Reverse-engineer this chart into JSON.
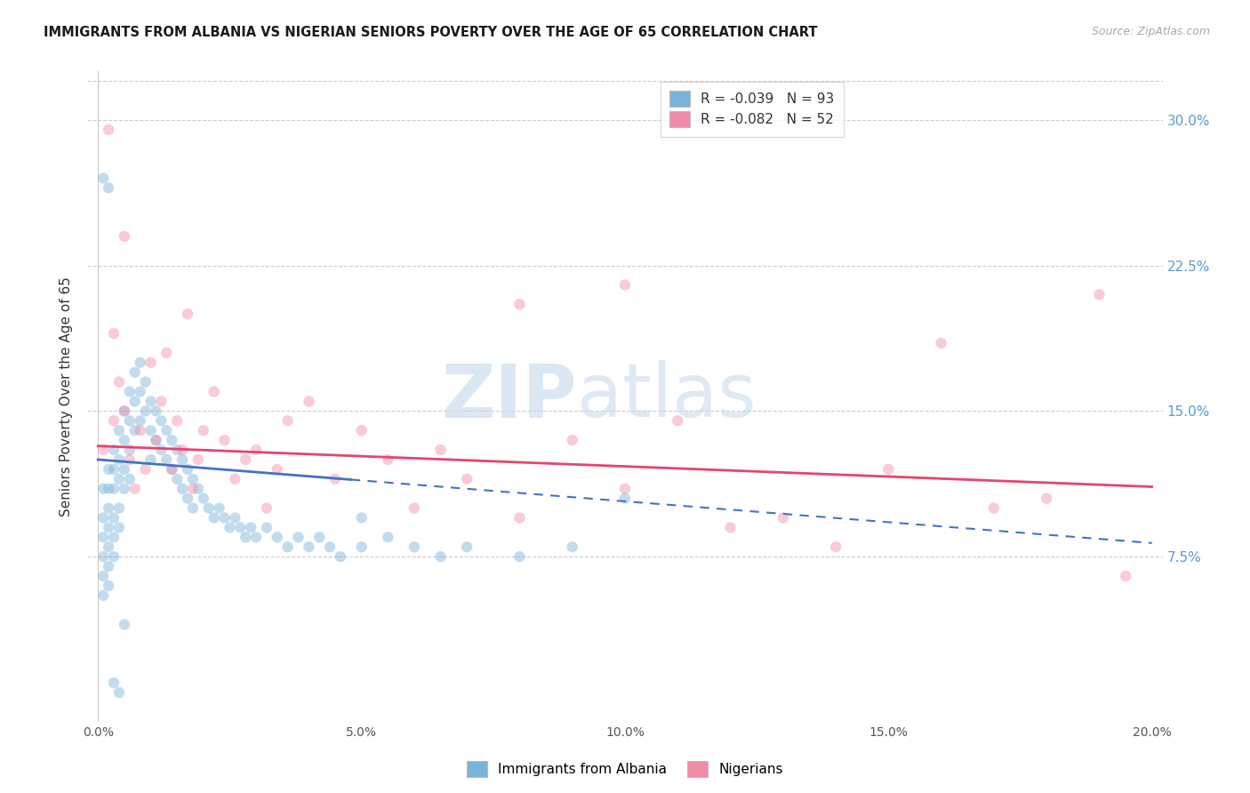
{
  "title": "IMMIGRANTS FROM ALBANIA VS NIGERIAN SENIORS POVERTY OVER THE AGE OF 65 CORRELATION CHART",
  "source": "Source: ZipAtlas.com",
  "ylabel": "Seniors Poverty Over the Age of 65",
  "xlim": [
    -0.002,
    0.202
  ],
  "ylim": [
    -0.01,
    0.325
  ],
  "x_tick_vals": [
    0.0,
    0.05,
    0.1,
    0.15,
    0.2
  ],
  "x_tick_labels": [
    "0.0%",
    "5.0%",
    "10.0%",
    "15.0%",
    "20.0%"
  ],
  "y_tick_vals": [
    0.075,
    0.15,
    0.225,
    0.3
  ],
  "y_tick_labels": [
    "7.5%",
    "15.0%",
    "22.5%",
    "30.0%"
  ],
  "legend_line1": "R = -0.039   N = 93",
  "legend_line2": "R = -0.082   N = 52",
  "albania_color": "#7ab3d9",
  "nigeria_color": "#f08ca8",
  "albania_line_color": "#4472c4",
  "nigeria_line_color": "#e8436e",
  "grid_color": "#cccccc",
  "bg_color": "#ffffff",
  "title_color": "#1a1a1a",
  "right_axis_color": "#5b9bd5",
  "marker_size": 80,
  "marker_alpha": 0.45,
  "albania_x": [
    0.001,
    0.001,
    0.001,
    0.001,
    0.001,
    0.001,
    0.002,
    0.002,
    0.002,
    0.002,
    0.002,
    0.002,
    0.002,
    0.003,
    0.003,
    0.003,
    0.003,
    0.003,
    0.003,
    0.004,
    0.004,
    0.004,
    0.004,
    0.004,
    0.005,
    0.005,
    0.005,
    0.005,
    0.006,
    0.006,
    0.006,
    0.006,
    0.007,
    0.007,
    0.007,
    0.008,
    0.008,
    0.008,
    0.009,
    0.009,
    0.01,
    0.01,
    0.01,
    0.011,
    0.011,
    0.012,
    0.012,
    0.013,
    0.013,
    0.014,
    0.014,
    0.015,
    0.015,
    0.016,
    0.016,
    0.017,
    0.017,
    0.018,
    0.018,
    0.019,
    0.02,
    0.021,
    0.022,
    0.023,
    0.024,
    0.025,
    0.026,
    0.027,
    0.028,
    0.029,
    0.03,
    0.032,
    0.034,
    0.036,
    0.038,
    0.04,
    0.042,
    0.044,
    0.046,
    0.05,
    0.055,
    0.06,
    0.065,
    0.07,
    0.08,
    0.09,
    0.001,
    0.002,
    0.003,
    0.004,
    0.005,
    0.05,
    0.1
  ],
  "albania_y": [
    0.11,
    0.095,
    0.085,
    0.075,
    0.065,
    0.055,
    0.12,
    0.11,
    0.1,
    0.09,
    0.08,
    0.07,
    0.06,
    0.13,
    0.12,
    0.11,
    0.095,
    0.085,
    0.075,
    0.14,
    0.125,
    0.115,
    0.1,
    0.09,
    0.15,
    0.135,
    0.12,
    0.11,
    0.16,
    0.145,
    0.13,
    0.115,
    0.17,
    0.155,
    0.14,
    0.175,
    0.16,
    0.145,
    0.165,
    0.15,
    0.155,
    0.14,
    0.125,
    0.15,
    0.135,
    0.145,
    0.13,
    0.14,
    0.125,
    0.135,
    0.12,
    0.13,
    0.115,
    0.125,
    0.11,
    0.12,
    0.105,
    0.115,
    0.1,
    0.11,
    0.105,
    0.1,
    0.095,
    0.1,
    0.095,
    0.09,
    0.095,
    0.09,
    0.085,
    0.09,
    0.085,
    0.09,
    0.085,
    0.08,
    0.085,
    0.08,
    0.085,
    0.08,
    0.075,
    0.08,
    0.085,
    0.08,
    0.075,
    0.08,
    0.075,
    0.08,
    0.27,
    0.265,
    0.01,
    0.005,
    0.04,
    0.095,
    0.105
  ],
  "nigeria_x": [
    0.001,
    0.002,
    0.003,
    0.004,
    0.005,
    0.006,
    0.007,
    0.008,
    0.009,
    0.01,
    0.011,
    0.012,
    0.013,
    0.014,
    0.015,
    0.016,
    0.017,
    0.018,
    0.019,
    0.02,
    0.022,
    0.024,
    0.026,
    0.028,
    0.03,
    0.032,
    0.034,
    0.036,
    0.04,
    0.045,
    0.05,
    0.055,
    0.06,
    0.065,
    0.07,
    0.08,
    0.09,
    0.1,
    0.11,
    0.12,
    0.13,
    0.14,
    0.15,
    0.16,
    0.17,
    0.18,
    0.19,
    0.195,
    0.003,
    0.005,
    0.1,
    0.08
  ],
  "nigeria_y": [
    0.13,
    0.295,
    0.145,
    0.165,
    0.15,
    0.125,
    0.11,
    0.14,
    0.12,
    0.175,
    0.135,
    0.155,
    0.18,
    0.12,
    0.145,
    0.13,
    0.2,
    0.11,
    0.125,
    0.14,
    0.16,
    0.135,
    0.115,
    0.125,
    0.13,
    0.1,
    0.12,
    0.145,
    0.155,
    0.115,
    0.14,
    0.125,
    0.1,
    0.13,
    0.115,
    0.095,
    0.135,
    0.11,
    0.145,
    0.09,
    0.095,
    0.08,
    0.12,
    0.185,
    0.1,
    0.105,
    0.21,
    0.065,
    0.19,
    0.24,
    0.215,
    0.205
  ],
  "watermark_zip": "ZIP",
  "watermark_atlas": "atlas"
}
